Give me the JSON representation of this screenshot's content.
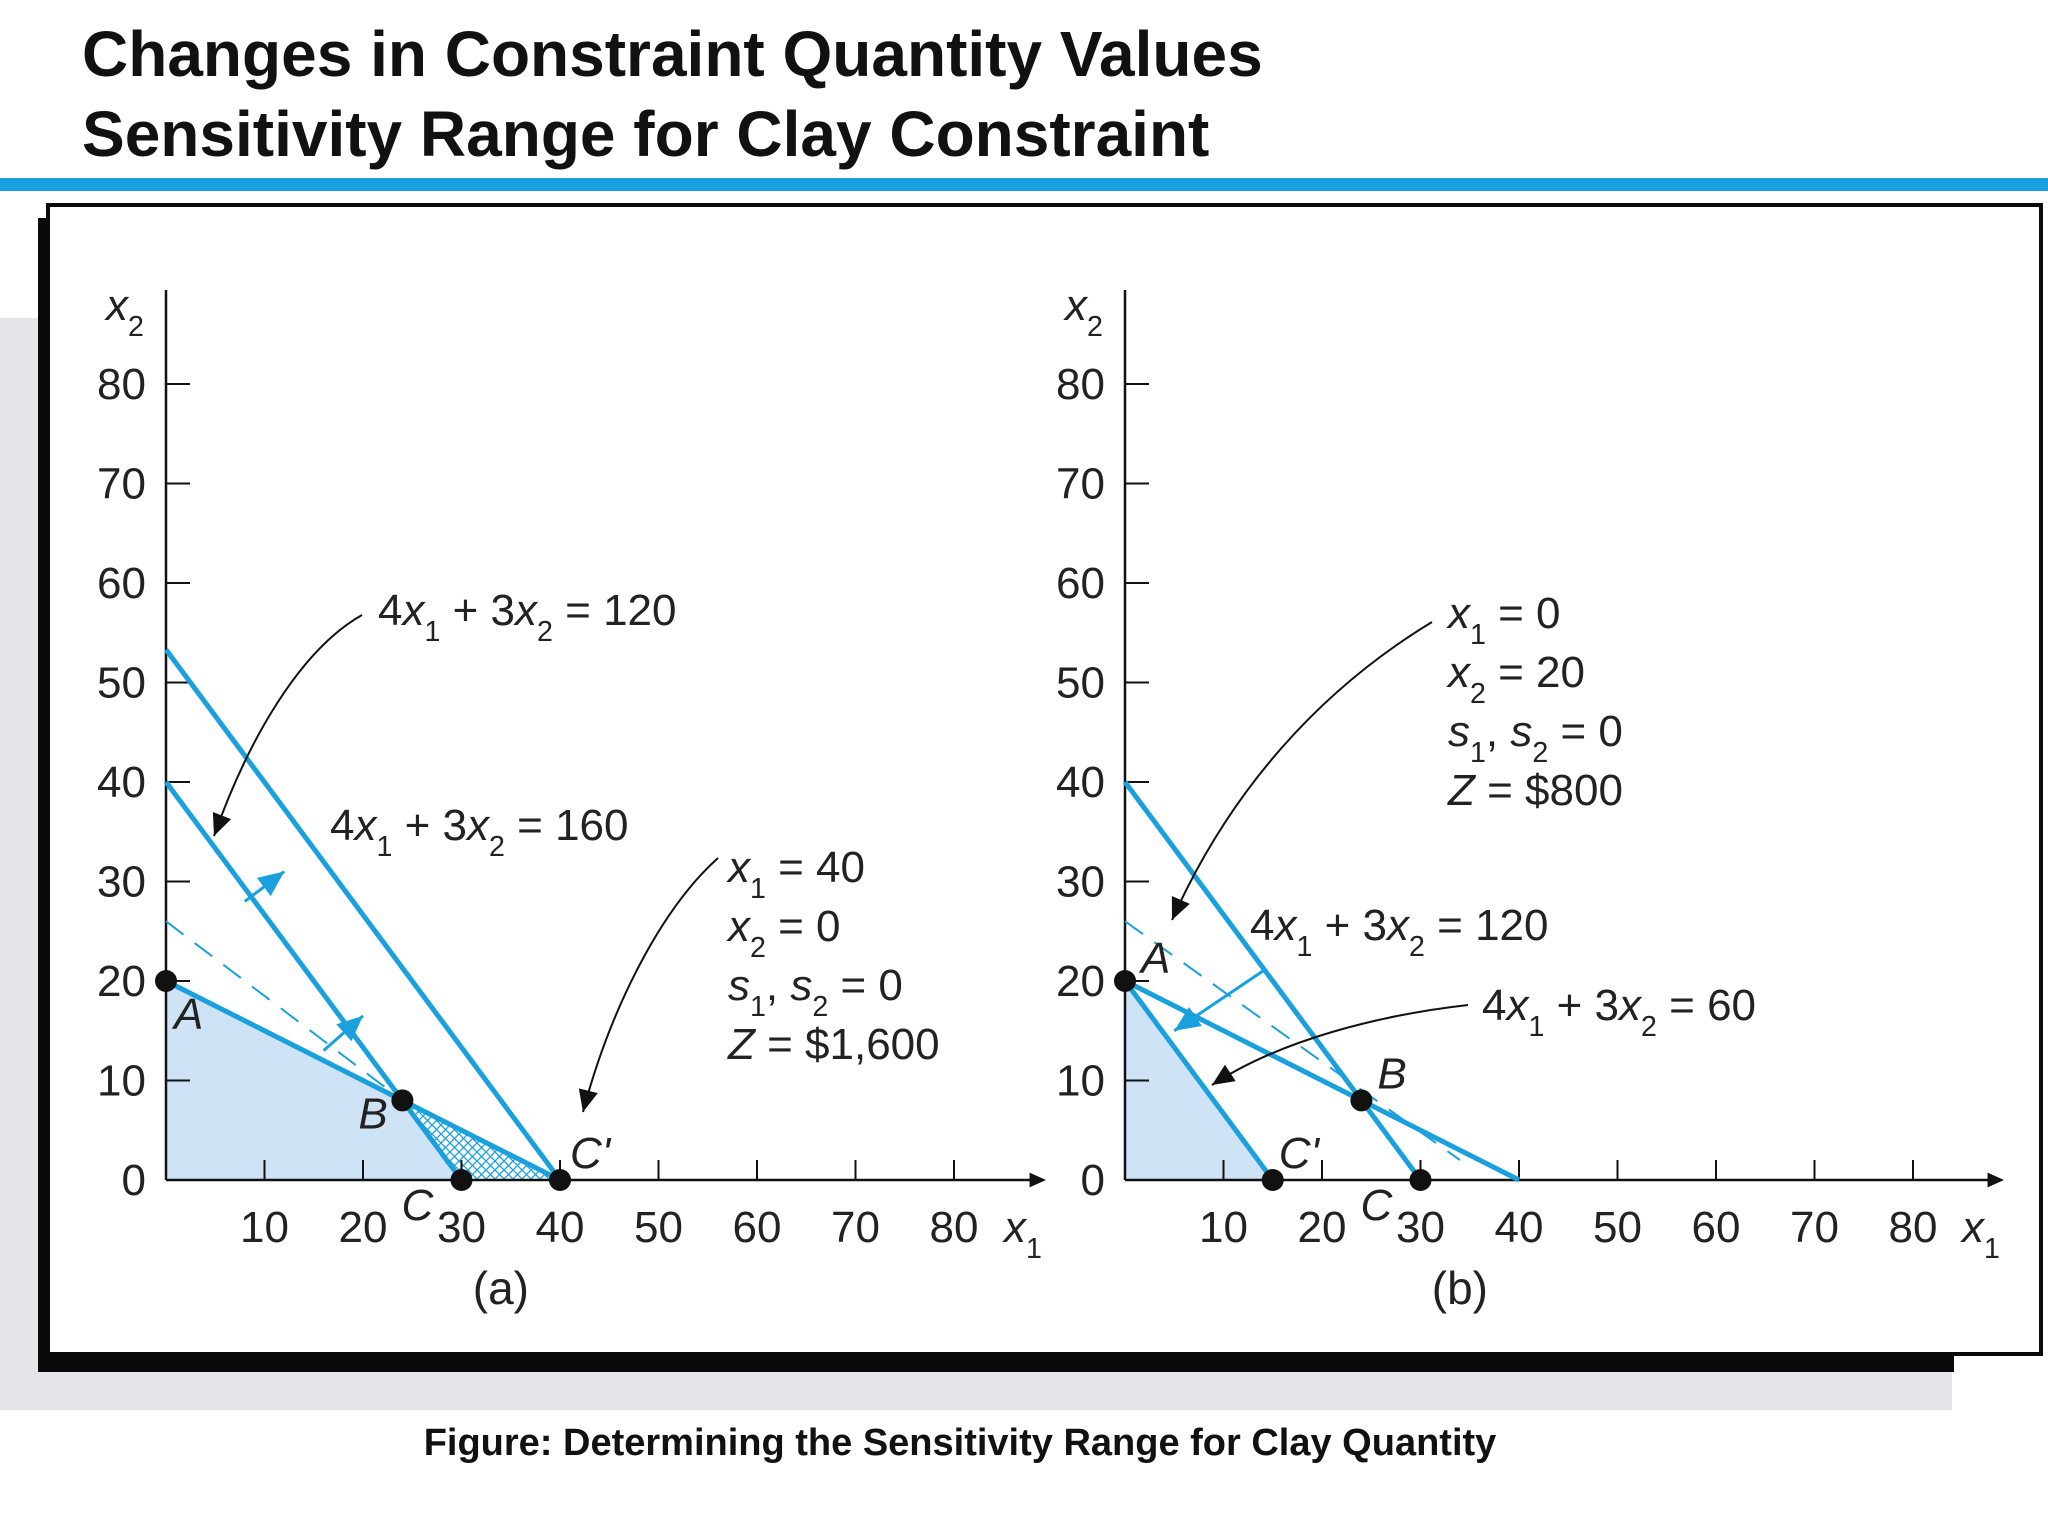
{
  "title": {
    "line1": "Changes in Constraint Quantity Values",
    "line2": "Sensitivity Range for Clay Constraint"
  },
  "caption": "Figure: Determining the Sensitivity Range for Clay Quantity",
  "colors": {
    "accent": "#1aa0dd",
    "feasible_fill": "#cfe3f7",
    "rule": "#1aa0dd",
    "text": "#222222"
  },
  "chart_data": [
    {
      "type": "line",
      "panel_label": "(a)",
      "xlabel": "x1",
      "ylabel": "x2",
      "xlim": [
        0,
        90
      ],
      "ylim": [
        0,
        90
      ],
      "x_ticks": [
        10,
        20,
        30,
        40,
        50,
        60,
        70,
        80
      ],
      "y_ticks": [
        0,
        10,
        20,
        30,
        40,
        50,
        60,
        70,
        80
      ],
      "grid": false,
      "series": [
        {
          "name": "4x1 + 3x2 = 120",
          "points": [
            [
              0,
              40
            ],
            [
              30,
              0
            ]
          ],
          "style": "solid"
        },
        {
          "name": "4x1 + 3x2 = 160",
          "points": [
            [
              0,
              53.3
            ],
            [
              40,
              0
            ]
          ],
          "style": "solid"
        },
        {
          "name": "",
          "points": [
            [
              0,
              20
            ],
            [
              24,
              8
            ],
            [
              40,
              0
            ]
          ],
          "style": "solid"
        },
        {
          "name": "",
          "points": [
            [
              0,
              26
            ],
            [
              24,
              8
            ]
          ],
          "style": "dashed"
        }
      ],
      "feasible_region": [
        [
          0,
          0
        ],
        [
          0,
          20
        ],
        [
          24,
          8
        ],
        [
          30,
          0
        ]
      ],
      "hatched_region": [
        [
          24,
          8
        ],
        [
          30,
          0
        ],
        [
          40,
          0
        ]
      ],
      "points": [
        {
          "label": "A",
          "x": 0,
          "y": 20
        },
        {
          "label": "B",
          "x": 24,
          "y": 8
        },
        {
          "label": "C",
          "x": 30,
          "y": 0
        },
        {
          "label": "C'",
          "x": 40,
          "y": 0
        }
      ],
      "annotations": [
        {
          "text": [
            "x1 = 40",
            "x2 = 0",
            "s1, s2 = 0",
            "Z = $1,600"
          ],
          "points_to": "C'"
        }
      ]
    },
    {
      "type": "line",
      "panel_label": "(b)",
      "xlabel": "x1",
      "ylabel": "x2",
      "xlim": [
        0,
        90
      ],
      "ylim": [
        0,
        90
      ],
      "x_ticks": [
        10,
        20,
        30,
        40,
        50,
        60,
        70,
        80
      ],
      "y_ticks": [
        0,
        10,
        20,
        30,
        40,
        50,
        60,
        70,
        80
      ],
      "grid": false,
      "series": [
        {
          "name": "4x1 + 3x2 = 120",
          "points": [
            [
              0,
              40
            ],
            [
              30,
              0
            ]
          ],
          "style": "solid"
        },
        {
          "name": "4x1 + 3x2 = 60",
          "points": [
            [
              0,
              20
            ],
            [
              15,
              0
            ]
          ],
          "style": "solid"
        },
        {
          "name": "",
          "points": [
            [
              0,
              20
            ],
            [
              24,
              8
            ],
            [
              40,
              0
            ]
          ],
          "style": "solid"
        },
        {
          "name": "",
          "points": [
            [
              0,
              26
            ],
            [
              34,
              2
            ]
          ],
          "style": "dashed"
        }
      ],
      "feasible_region": [
        [
          0,
          0
        ],
        [
          0,
          20
        ],
        [
          15,
          0
        ]
      ],
      "points": [
        {
          "label": "A",
          "x": 0,
          "y": 20
        },
        {
          "label": "B",
          "x": 24,
          "y": 8
        },
        {
          "label": "C",
          "x": 30,
          "y": 0
        },
        {
          "label": "C'",
          "x": 15,
          "y": 0
        }
      ],
      "annotations": [
        {
          "text": [
            "x1 = 0",
            "x2 = 20",
            "s1, s2 = 0",
            "Z = $800"
          ],
          "points_to": "A"
        }
      ]
    }
  ]
}
